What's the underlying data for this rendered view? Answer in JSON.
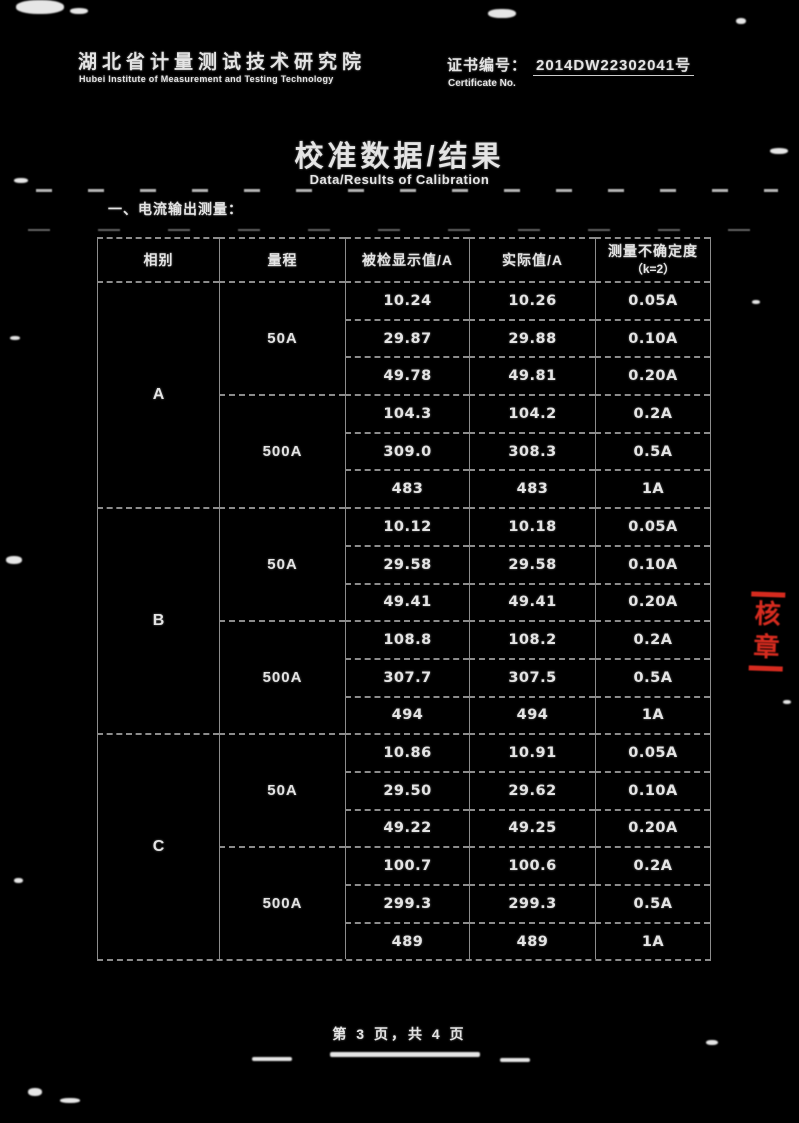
{
  "header": {
    "institute_cn": "湖北省计量测试技术研究院",
    "institute_en": "Hubei Institute of Measurement and Testing Technology",
    "certificate_label_cn": "证书编号：",
    "certificate_number": "2014DW22302041号",
    "certificate_label_en": "Certificate No."
  },
  "title": {
    "cn": "校准数据/结果",
    "en": "Data/Results of Calibration"
  },
  "section_heading": "一、电流输出测量：",
  "table": {
    "headers": [
      "相别",
      "量程",
      "被检显示值/A",
      "实际值/A",
      "测量不确定度"
    ],
    "uncertainty_note": "（k=2）",
    "groups": [
      {
        "phase": "A",
        "ranges": [
          {
            "range": "50A",
            "rows": [
              [
                "10.24",
                "10.26",
                "0.05A"
              ],
              [
                "29.87",
                "29.88",
                "0.10A"
              ],
              [
                "49.78",
                "49.81",
                "0.20A"
              ]
            ]
          },
          {
            "range": "500A",
            "rows": [
              [
                "104.3",
                "104.2",
                "0.2A"
              ],
              [
                "309.0",
                "308.3",
                "0.5A"
              ],
              [
                "483",
                "483",
                "1A"
              ]
            ]
          }
        ]
      },
      {
        "phase": "B",
        "ranges": [
          {
            "range": "50A",
            "rows": [
              [
                "10.12",
                "10.18",
                "0.05A"
              ],
              [
                "29.58",
                "29.58",
                "0.10A"
              ],
              [
                "49.41",
                "49.41",
                "0.20A"
              ]
            ]
          },
          {
            "range": "500A",
            "rows": [
              [
                "108.8",
                "108.2",
                "0.2A"
              ],
              [
                "307.7",
                "307.5",
                "0.5A"
              ],
              [
                "494",
                "494",
                "1A"
              ]
            ]
          }
        ]
      },
      {
        "phase": "C",
        "ranges": [
          {
            "range": "50A",
            "rows": [
              [
                "10.86",
                "10.91",
                "0.05A"
              ],
              [
                "29.50",
                "29.62",
                "0.10A"
              ],
              [
                "49.22",
                "49.25",
                "0.20A"
              ]
            ]
          },
          {
            "range": "500A",
            "rows": [
              [
                "100.7",
                "100.6",
                "0.2A"
              ],
              [
                "299.3",
                "299.3",
                "0.5A"
              ],
              [
                "489",
                "489",
                "1A"
              ]
            ]
          }
        ]
      }
    ]
  },
  "stamp": {
    "chars": [
      "核",
      "章"
    ],
    "color": "#d62b1f"
  },
  "footer": "第 3 页，共 4 页"
}
